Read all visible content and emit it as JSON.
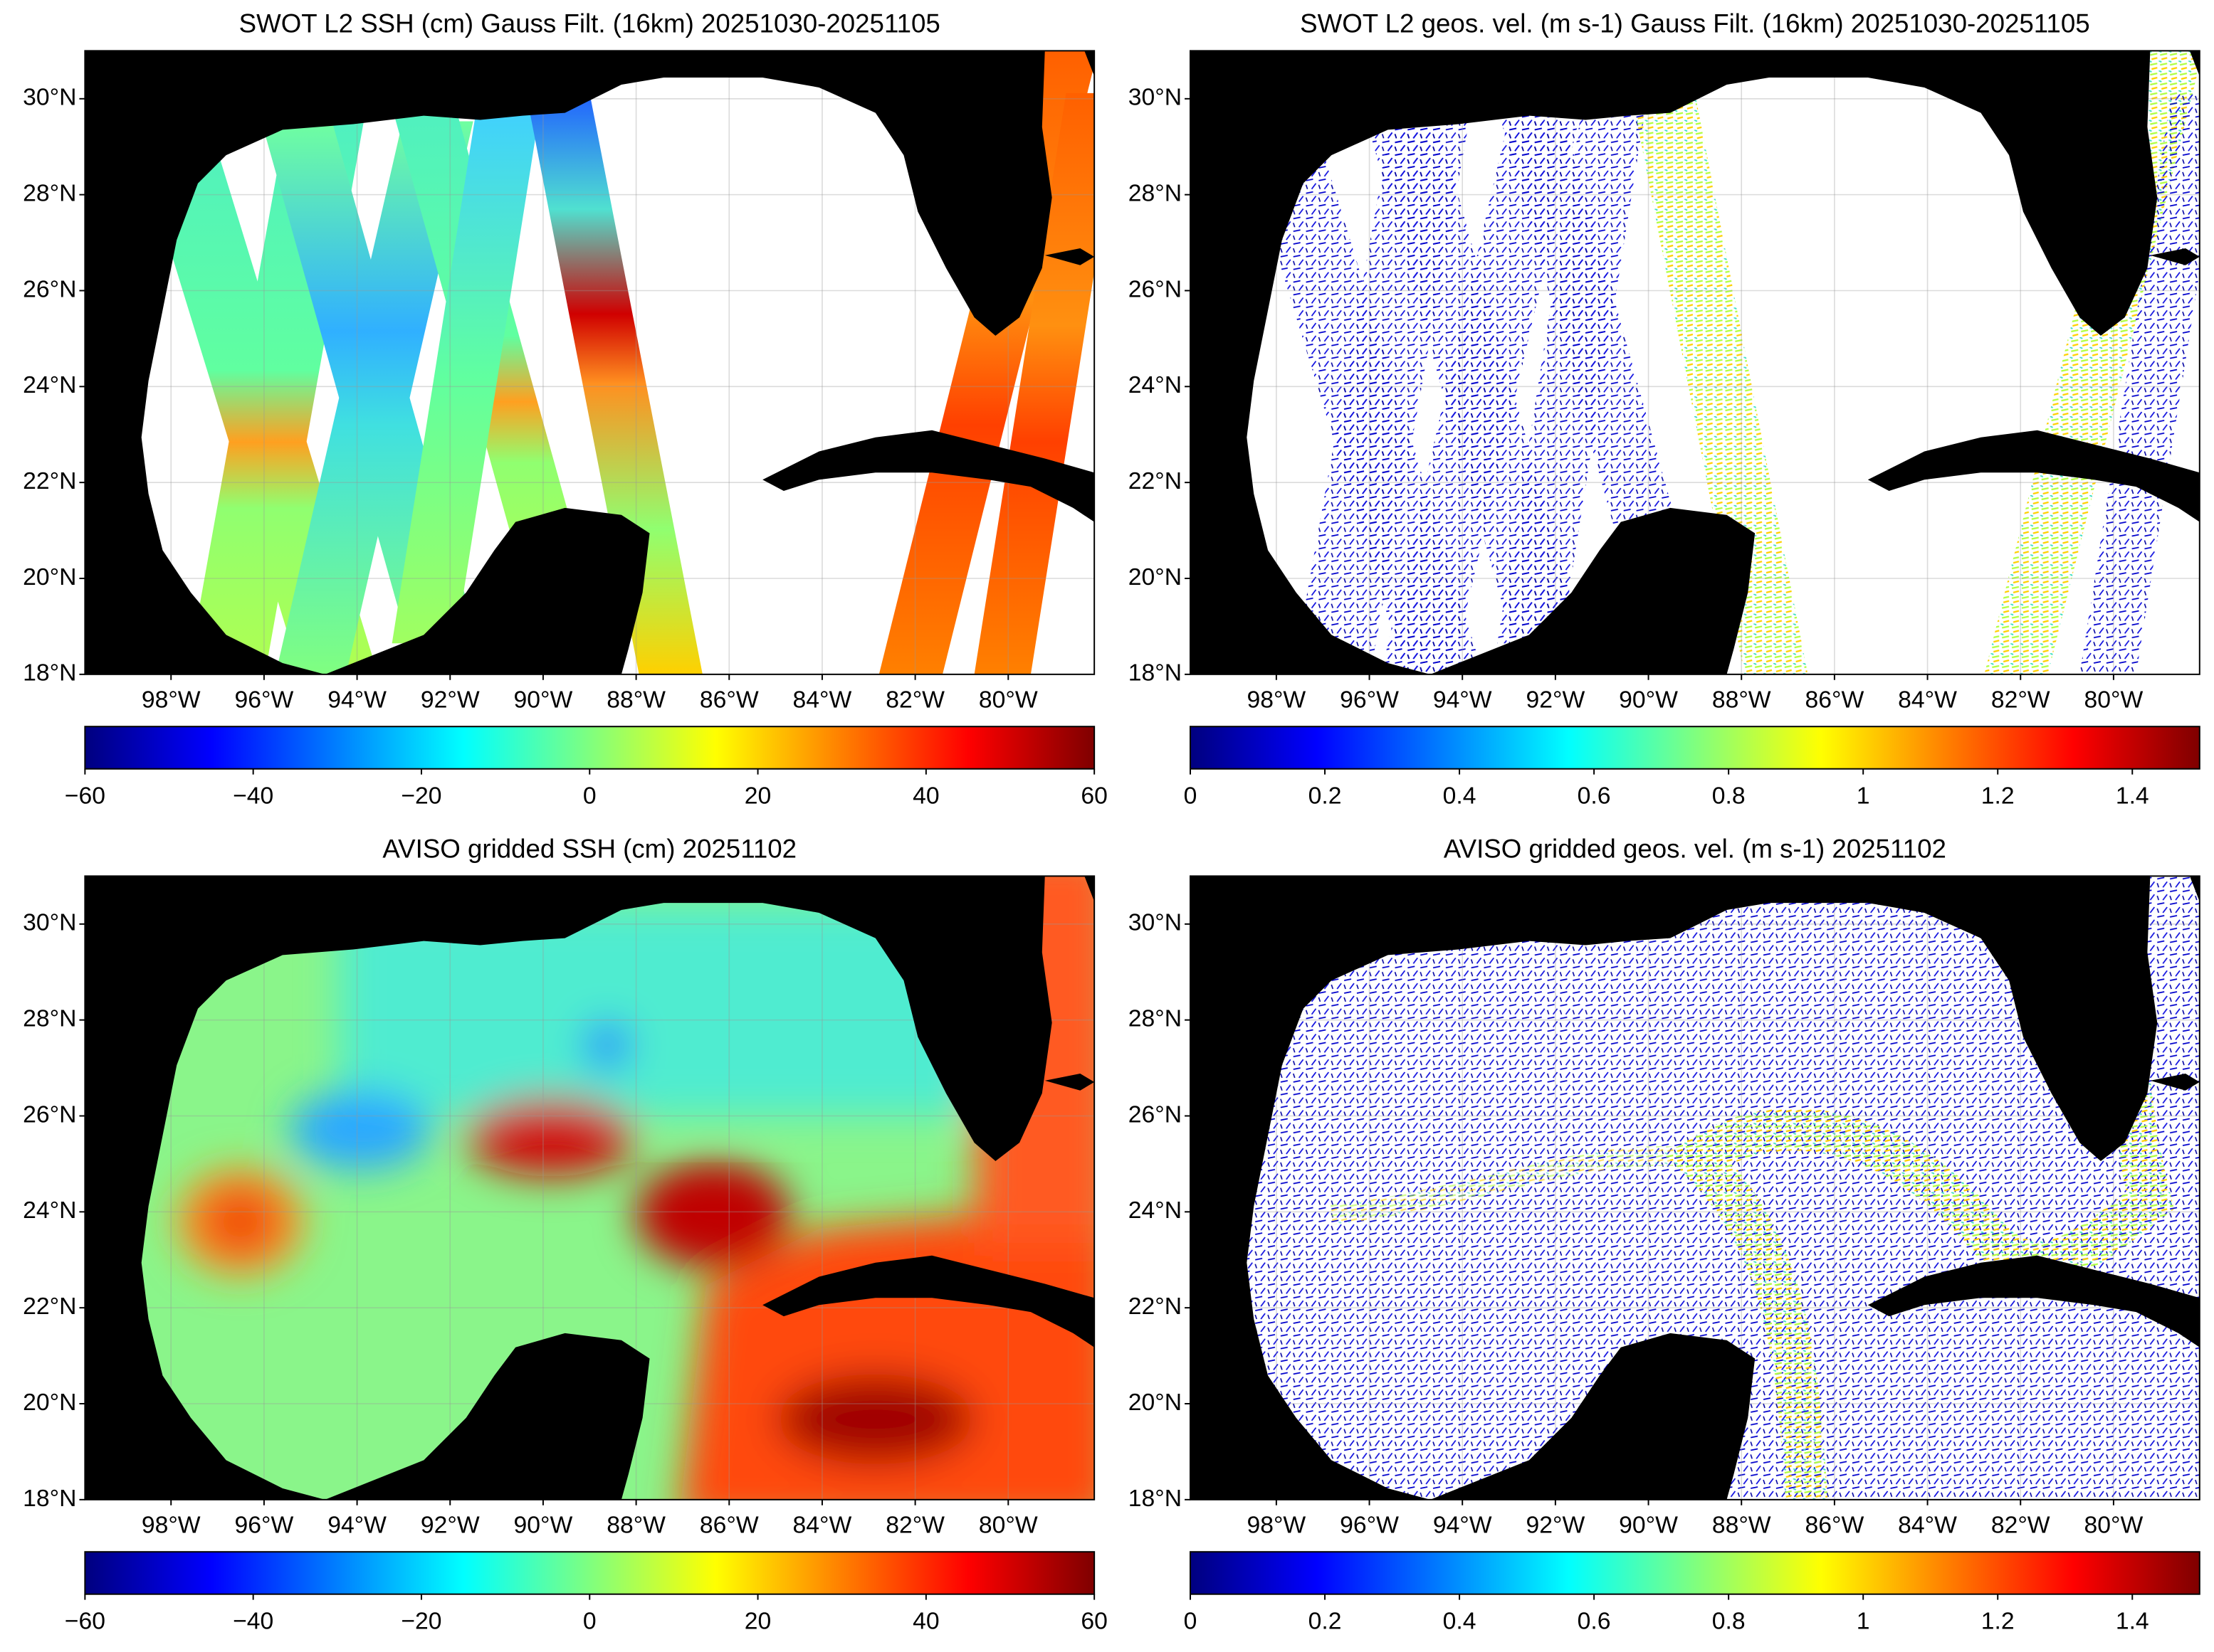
{
  "panels": [
    {
      "type": "swath-field",
      "title": "SWOT L2 SSH (cm) Gauss Filt. (16km) 20251030-20251105",
      "xlim": [
        -99.85,
        -78.15
      ],
      "ylim": [
        18,
        31
      ],
      "xticks": [
        {
          "value": -98,
          "label": "98°W"
        },
        {
          "value": -96,
          "label": "96°W"
        },
        {
          "value": -94,
          "label": "94°W"
        },
        {
          "value": -92,
          "label": "92°W"
        },
        {
          "value": -90,
          "label": "90°W"
        },
        {
          "value": -88,
          "label": "88°W"
        },
        {
          "value": -86,
          "label": "86°W"
        },
        {
          "value": -84,
          "label": "84°W"
        },
        {
          "value": -82,
          "label": "82°W"
        },
        {
          "value": -80,
          "label": "80°W"
        }
      ],
      "yticks": [
        {
          "value": 18,
          "label": "18°N"
        },
        {
          "value": 20,
          "label": "20°N"
        },
        {
          "value": 22,
          "label": "22°N"
        },
        {
          "value": 24,
          "label": "24°N"
        },
        {
          "value": 26,
          "label": "26°N"
        },
        {
          "value": 28,
          "label": "28°N"
        },
        {
          "value": 30,
          "label": "30°N"
        }
      ],
      "grid": true,
      "colorbar": {
        "clim": [
          -60,
          60
        ],
        "ticks": [
          {
            "value": -60,
            "label": "−60"
          },
          {
            "value": -40,
            "label": "−40"
          },
          {
            "value": -20,
            "label": "−20"
          },
          0,
          20,
          40,
          60
        ],
        "colors": [
          "#00007f",
          "#0000ff",
          "#007fff",
          "#00ffff",
          "#7fff7f",
          "#ffff00",
          "#ff7f00",
          "#ff0000",
          "#7f0000"
        ]
      }
    },
    {
      "type": "swath-vectors",
      "title": "SWOT L2 geos. vel. (m s-1) Gauss Filt. (16km) 20251030-20251105",
      "xlim": [
        -99.85,
        -78.15
      ],
      "ylim": [
        18,
        31
      ],
      "xticks": [
        {
          "value": -98,
          "label": "98°W"
        },
        {
          "value": -96,
          "label": "96°W"
        },
        {
          "value": -94,
          "label": "94°W"
        },
        {
          "value": -92,
          "label": "92°W"
        },
        {
          "value": -90,
          "label": "90°W"
        },
        {
          "value": -88,
          "label": "88°W"
        },
        {
          "value": -86,
          "label": "86°W"
        },
        {
          "value": -84,
          "label": "84°W"
        },
        {
          "value": -82,
          "label": "82°W"
        },
        {
          "value": -80,
          "label": "80°W"
        }
      ],
      "yticks": [
        {
          "value": 18,
          "label": "18°N"
        },
        {
          "value": 20,
          "label": "20°N"
        },
        {
          "value": 22,
          "label": "22°N"
        },
        {
          "value": 24,
          "label": "24°N"
        },
        {
          "value": 26,
          "label": "26°N"
        },
        {
          "value": 28,
          "label": "28°N"
        },
        {
          "value": 30,
          "label": "30°N"
        }
      ],
      "grid": true,
      "colorbar": {
        "clim": [
          0,
          1.5
        ],
        "ticks": [
          0,
          0.2,
          0.4,
          0.6,
          0.8,
          1,
          1.2,
          1.4
        ],
        "colors": [
          "#00007f",
          "#0000ff",
          "#007fff",
          "#00ffff",
          "#7fff7f",
          "#ffff00",
          "#ff7f00",
          "#ff0000",
          "#7f0000"
        ]
      }
    },
    {
      "type": "gridded-field",
      "title": "AVISO gridded SSH (cm) 20251102",
      "xlim": [
        -99.85,
        -78.15
      ],
      "ylim": [
        18,
        31
      ],
      "xticks": [
        {
          "value": -98,
          "label": "98°W"
        },
        {
          "value": -96,
          "label": "96°W"
        },
        {
          "value": -94,
          "label": "94°W"
        },
        {
          "value": -92,
          "label": "92°W"
        },
        {
          "value": -90,
          "label": "90°W"
        },
        {
          "value": -88,
          "label": "88°W"
        },
        {
          "value": -86,
          "label": "86°W"
        },
        {
          "value": -84,
          "label": "84°W"
        },
        {
          "value": -82,
          "label": "82°W"
        },
        {
          "value": -80,
          "label": "80°W"
        }
      ],
      "yticks": [
        {
          "value": 18,
          "label": "18°N"
        },
        {
          "value": 20,
          "label": "20°N"
        },
        {
          "value": 22,
          "label": "22°N"
        },
        {
          "value": 24,
          "label": "24°N"
        },
        {
          "value": 26,
          "label": "26°N"
        },
        {
          "value": 28,
          "label": "28°N"
        },
        {
          "value": 30,
          "label": "30°N"
        }
      ],
      "grid": true,
      "colorbar": {
        "clim": [
          -60,
          60
        ],
        "ticks": [
          {
            "value": -60,
            "label": "−60"
          },
          {
            "value": -40,
            "label": "−40"
          },
          {
            "value": -20,
            "label": "−20"
          },
          0,
          20,
          40,
          60
        ],
        "colors": [
          "#00007f",
          "#0000ff",
          "#007fff",
          "#00ffff",
          "#7fff7f",
          "#ffff00",
          "#ff7f00",
          "#ff0000",
          "#7f0000"
        ]
      }
    },
    {
      "type": "gridded-vectors",
      "title": "AVISO gridded geos. vel. (m s-1)  20251102",
      "xlim": [
        -99.85,
        -78.15
      ],
      "ylim": [
        18,
        31
      ],
      "xticks": [
        {
          "value": -98,
          "label": "98°W"
        },
        {
          "value": -96,
          "label": "96°W"
        },
        {
          "value": -94,
          "label": "94°W"
        },
        {
          "value": -92,
          "label": "92°W"
        },
        {
          "value": -90,
          "label": "90°W"
        },
        {
          "value": -88,
          "label": "88°W"
        },
        {
          "value": -86,
          "label": "86°W"
        },
        {
          "value": -84,
          "label": "84°W"
        },
        {
          "value": -82,
          "label": "82°W"
        },
        {
          "value": -80,
          "label": "80°W"
        }
      ],
      "yticks": [
        {
          "value": 18,
          "label": "18°N"
        },
        {
          "value": 20,
          "label": "20°N"
        },
        {
          "value": 22,
          "label": "22°N"
        },
        {
          "value": 24,
          "label": "24°N"
        },
        {
          "value": 26,
          "label": "26°N"
        },
        {
          "value": 28,
          "label": "28°N"
        },
        {
          "value": 30,
          "label": "30°N"
        }
      ],
      "grid": true,
      "colorbar": {
        "clim": [
          0,
          1.5
        ],
        "ticks": [
          0,
          0.2,
          0.4,
          0.6,
          0.8,
          1,
          1.2,
          1.4
        ],
        "colors": [
          "#00007f",
          "#0000ff",
          "#007fff",
          "#00ffff",
          "#7fff7f",
          "#ffff00",
          "#ff7f00",
          "#ff0000",
          "#7f0000"
        ]
      }
    }
  ]
}
